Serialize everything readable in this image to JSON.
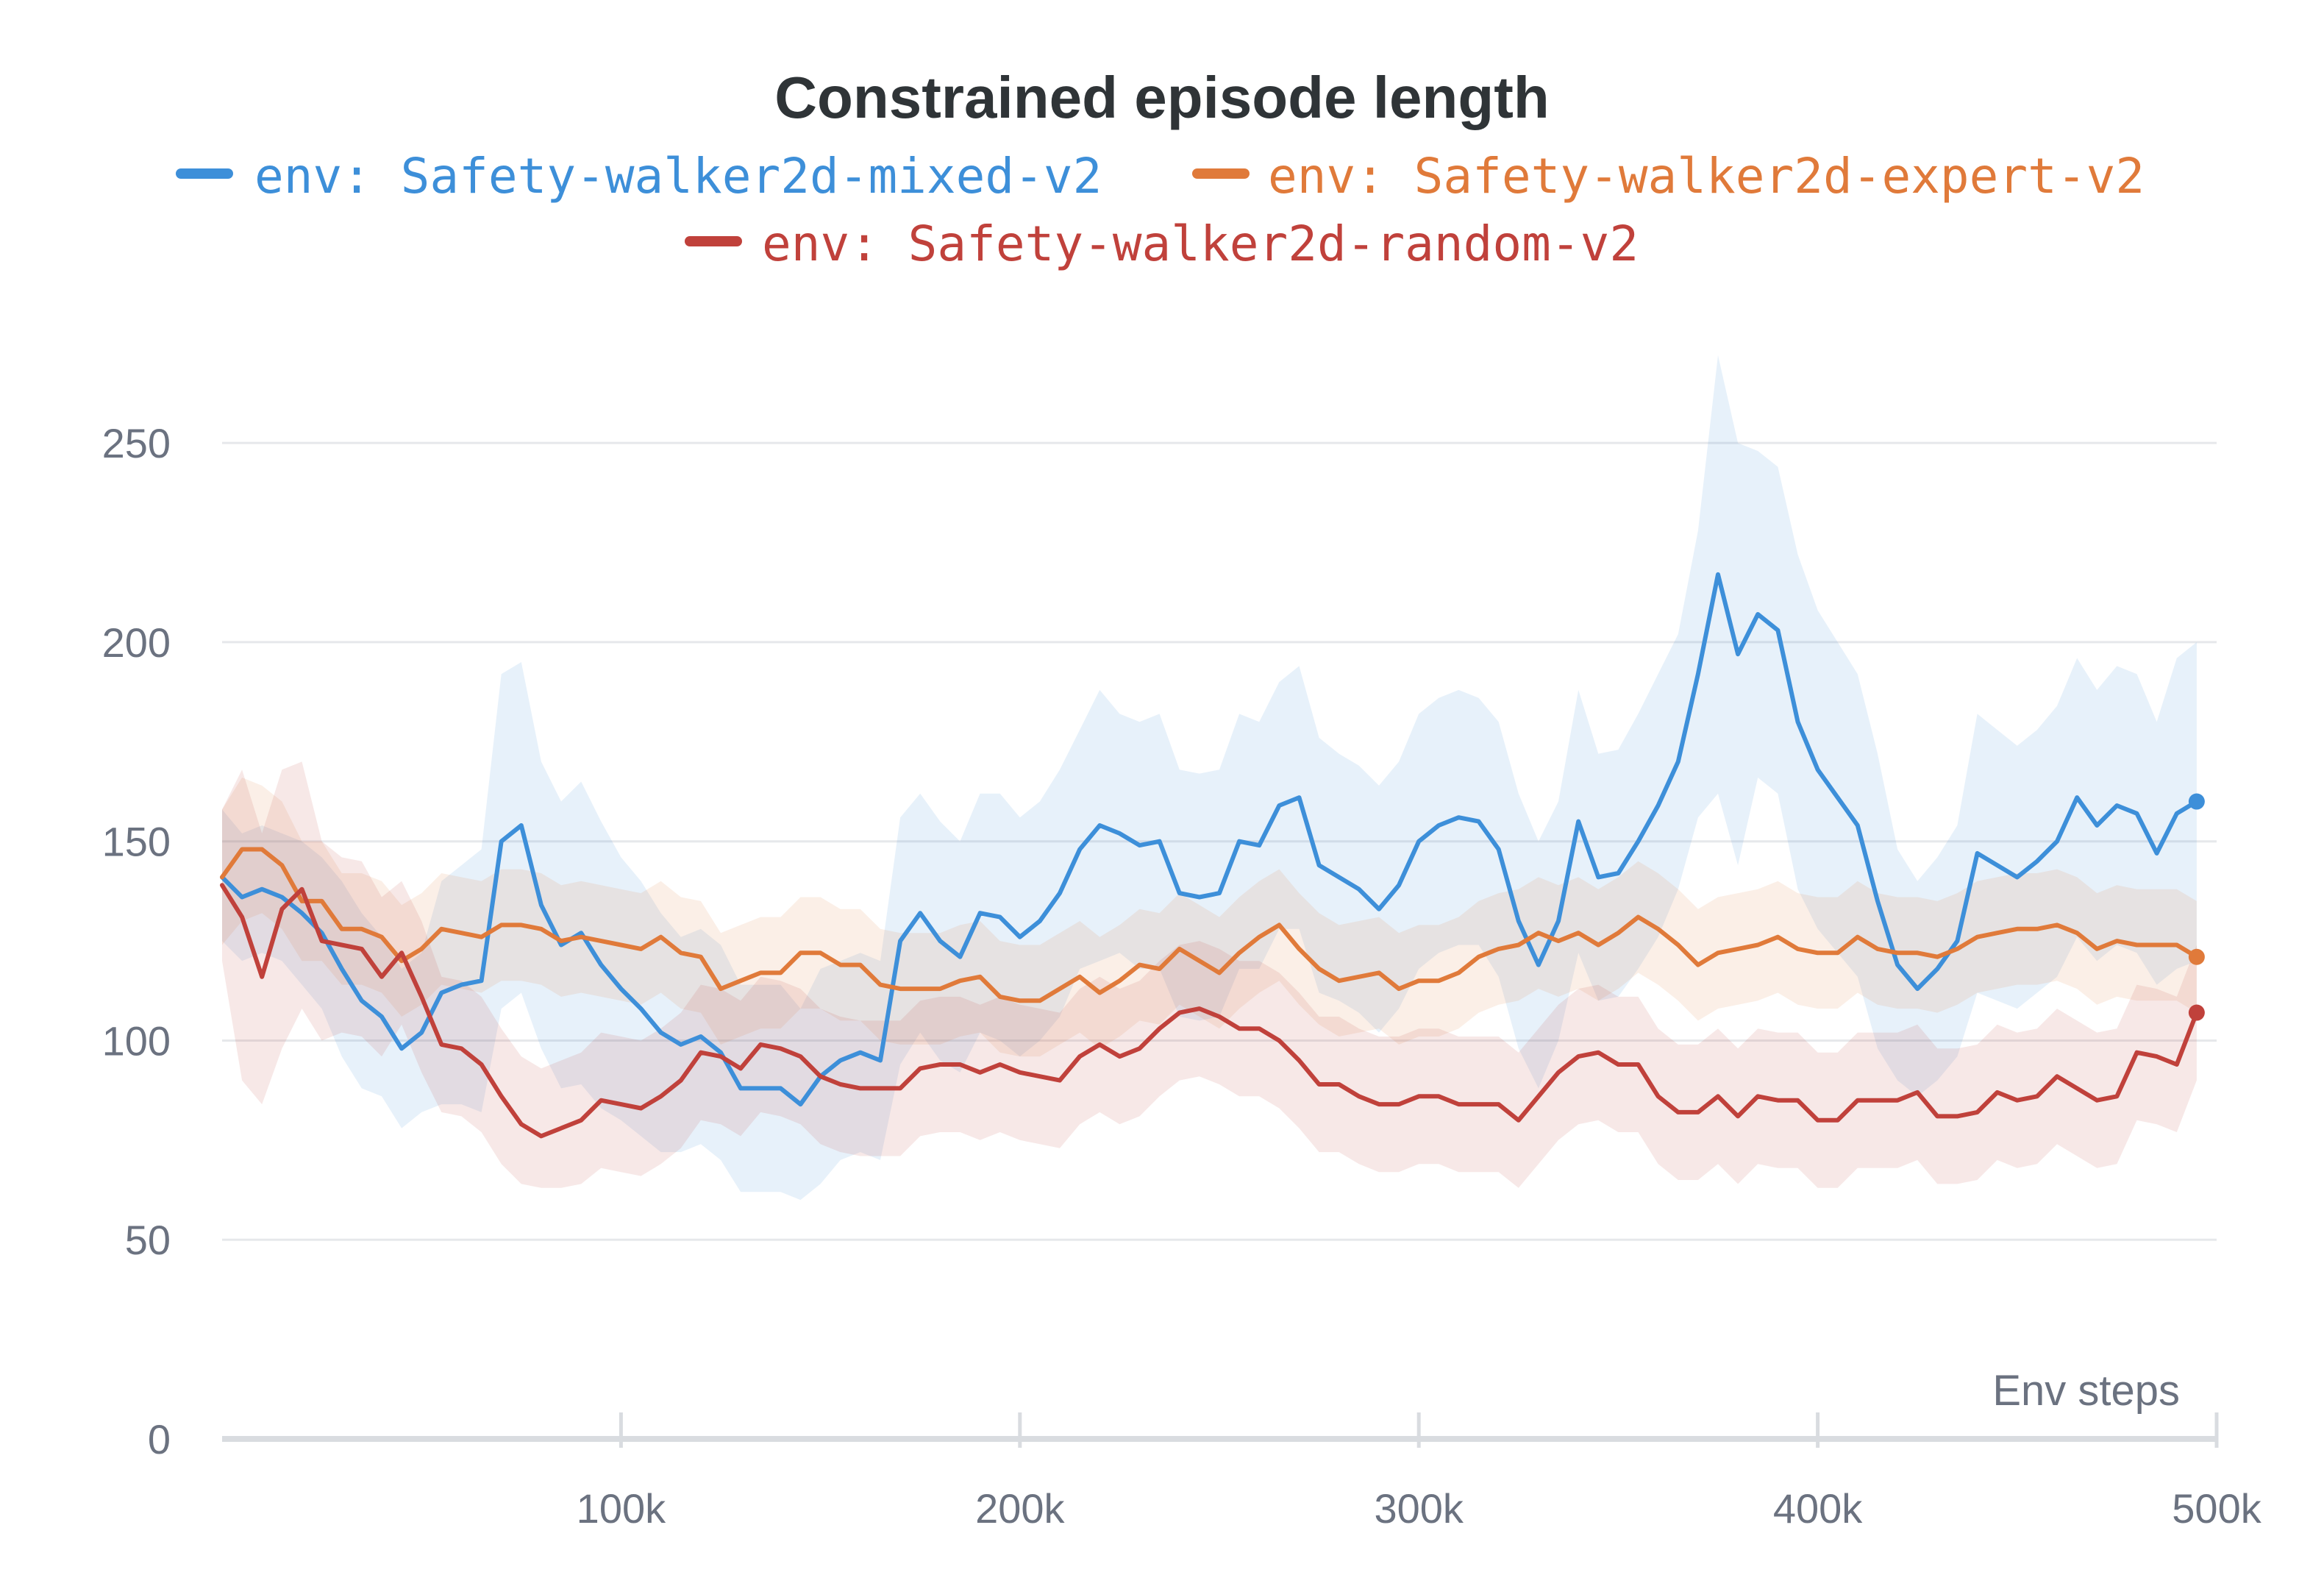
{
  "chart_data": {
    "type": "line",
    "title": "Constrained episode length",
    "xlabel": "Env steps",
    "ylabel": "",
    "xlim": [
      0,
      500000
    ],
    "ylim": [
      0,
      260
    ],
    "grid": true,
    "legend_position": "top",
    "x_ticks": [
      100000,
      200000,
      300000,
      400000,
      500000
    ],
    "x_tick_labels": [
      "100k",
      "200k",
      "300k",
      "400k",
      "500k"
    ],
    "y_ticks": [
      0,
      50,
      100,
      150,
      200,
      250
    ],
    "y_tick_labels": [
      "0",
      "50",
      "100",
      "150",
      "200",
      "250"
    ],
    "x_start": 0,
    "x_step": 5000,
    "series": [
      {
        "name": "env: Safety-walker2d-mixed-v2",
        "color": "#3d8fd9",
        "values": [
          141,
          136,
          138,
          136,
          132,
          127,
          118,
          110,
          106,
          98,
          102,
          112,
          114,
          115,
          150,
          154,
          134,
          124,
          127,
          119,
          113,
          108,
          102,
          99,
          101,
          97,
          88,
          88,
          88,
          84,
          91,
          95,
          97,
          95,
          125,
          132,
          125,
          121,
          132,
          131,
          126,
          130,
          137,
          148,
          154,
          152,
          149,
          150,
          137,
          136,
          137,
          150,
          149,
          159,
          161,
          144,
          141,
          138,
          133,
          139,
          150,
          154,
          156,
          155,
          148,
          130,
          119,
          130,
          155,
          141,
          142,
          150,
          159,
          170,
          192,
          217,
          197,
          207,
          203,
          180,
          168,
          161,
          154,
          135,
          119,
          113,
          118,
          125,
          147,
          144,
          141,
          145,
          150,
          161,
          154,
          159,
          157,
          147,
          157,
          160
        ],
        "band_upper": [
          158,
          152,
          154,
          152,
          150,
          146,
          140,
          132,
          126,
          118,
          122,
          140,
          144,
          148,
          192,
          195,
          170,
          160,
          165,
          155,
          146,
          140,
          132,
          126,
          128,
          124,
          114,
          114,
          114,
          108,
          118,
          120,
          122,
          120,
          156,
          162,
          155,
          150,
          162,
          162,
          156,
          160,
          168,
          178,
          188,
          182,
          180,
          182,
          168,
          167,
          168,
          182,
          180,
          190,
          194,
          176,
          172,
          169,
          164,
          170,
          182,
          186,
          188,
          186,
          180,
          162,
          150,
          160,
          188,
          172,
          173,
          182,
          192,
          202,
          228,
          272,
          250,
          248,
          244,
          222,
          208,
          200,
          192,
          172,
          148,
          140,
          146,
          154,
          182,
          178,
          174,
          178,
          184,
          196,
          188,
          194,
          192,
          180,
          196,
          200
        ],
        "band_lower": [
          125,
          120,
          122,
          120,
          114,
          108,
          96,
          88,
          86,
          78,
          82,
          84,
          84,
          82,
          108,
          112,
          98,
          88,
          89,
          83,
          80,
          76,
          72,
          72,
          74,
          70,
          62,
          62,
          62,
          60,
          64,
          70,
          72,
          70,
          94,
          102,
          95,
          92,
          102,
          100,
          96,
          100,
          106,
          118,
          120,
          122,
          118,
          118,
          106,
          105,
          106,
          118,
          118,
          128,
          128,
          112,
          110,
          107,
          102,
          108,
          118,
          122,
          124,
          124,
          116,
          98,
          88,
          100,
          122,
          110,
          111,
          118,
          126,
          138,
          156,
          162,
          144,
          166,
          162,
          138,
          128,
          122,
          116,
          98,
          90,
          86,
          90,
          96,
          112,
          110,
          108,
          112,
          116,
          126,
          120,
          124,
          122,
          114,
          118,
          120
        ]
      },
      {
        "name": "env: Safety-walker2d-expert-v2",
        "color": "#e07a3a",
        "values": [
          141,
          148,
          148,
          144,
          135,
          135,
          128,
          128,
          126,
          120,
          123,
          128,
          127,
          126,
          129,
          129,
          128,
          125,
          126,
          125,
          124,
          123,
          126,
          122,
          121,
          113,
          115,
          117,
          117,
          122,
          122,
          119,
          119,
          114,
          113,
          113,
          113,
          115,
          116,
          111,
          110,
          110,
          113,
          116,
          112,
          115,
          119,
          118,
          123,
          120,
          117,
          122,
          126,
          129,
          123,
          118,
          115,
          116,
          117,
          113,
          115,
          115,
          117,
          121,
          123,
          124,
          127,
          125,
          127,
          124,
          127,
          131,
          128,
          124,
          119,
          122,
          123,
          124,
          126,
          123,
          122,
          122,
          126,
          123,
          122,
          122,
          121,
          123,
          126,
          127,
          128,
          128,
          129,
          127,
          123,
          125,
          124,
          124,
          124,
          121
        ],
        "band_upper": [
          158,
          166,
          164,
          160,
          150,
          150,
          142,
          142,
          140,
          134,
          137,
          142,
          141,
          140,
          143,
          143,
          142,
          139,
          140,
          139,
          138,
          137,
          140,
          136,
          135,
          127,
          129,
          131,
          131,
          136,
          136,
          133,
          133,
          128,
          127,
          127,
          127,
          129,
          130,
          125,
          124,
          124,
          127,
          130,
          126,
          129,
          133,
          132,
          137,
          134,
          131,
          136,
          140,
          143,
          137,
          132,
          129,
          130,
          131,
          127,
          129,
          129,
          131,
          135,
          137,
          138,
          141,
          139,
          141,
          138,
          141,
          145,
          142,
          138,
          133,
          136,
          137,
          138,
          140,
          137,
          136,
          136,
          140,
          137,
          136,
          136,
          135,
          137,
          140,
          141,
          142,
          142,
          143,
          141,
          137,
          139,
          138,
          138,
          138,
          135
        ],
        "band_lower": [
          124,
          130,
          132,
          128,
          120,
          120,
          114,
          114,
          112,
          106,
          109,
          114,
          113,
          112,
          115,
          115,
          114,
          111,
          112,
          111,
          110,
          109,
          112,
          108,
          107,
          99,
          101,
          103,
          103,
          108,
          108,
          105,
          105,
          100,
          99,
          99,
          99,
          101,
          102,
          97,
          96,
          96,
          99,
          102,
          98,
          101,
          105,
          104,
          109,
          106,
          103,
          108,
          112,
          115,
          109,
          104,
          101,
          102,
          103,
          99,
          101,
          101,
          103,
          107,
          109,
          110,
          113,
          111,
          113,
          110,
          113,
          117,
          114,
          110,
          105,
          108,
          109,
          110,
          112,
          109,
          108,
          108,
          112,
          109,
          108,
          108,
          107,
          109,
          112,
          113,
          114,
          114,
          115,
          113,
          109,
          111,
          110,
          110,
          110,
          107
        ]
      },
      {
        "name": "env: Safety-walker2d-random-v2",
        "color": "#c0413b",
        "values": [
          139,
          131,
          116,
          133,
          138,
          125,
          124,
          123,
          116,
          122,
          111,
          99,
          98,
          94,
          86,
          79,
          76,
          78,
          80,
          85,
          84,
          83,
          86,
          90,
          97,
          96,
          93,
          99,
          98,
          96,
          91,
          89,
          88,
          88,
          88,
          93,
          94,
          94,
          92,
          94,
          92,
          91,
          90,
          96,
          99,
          96,
          98,
          103,
          107,
          108,
          106,
          103,
          103,
          100,
          95,
          89,
          89,
          86,
          84,
          84,
          86,
          86,
          84,
          84,
          84,
          80,
          86,
          92,
          96,
          97,
          94,
          94,
          86,
          82,
          82,
          86,
          81,
          86,
          85,
          85,
          80,
          80,
          85,
          85,
          85,
          87,
          81,
          81,
          82,
          87,
          85,
          86,
          91,
          88,
          85,
          86,
          97,
          96,
          94,
          107
        ],
        "band_upper": [
          158,
          168,
          152,
          168,
          170,
          150,
          146,
          145,
          136,
          140,
          130,
          116,
          115,
          111,
          103,
          96,
          93,
          95,
          97,
          102,
          101,
          100,
          103,
          107,
          114,
          113,
          110,
          116,
          115,
          113,
          108,
          106,
          105,
          105,
          105,
          110,
          111,
          111,
          109,
          111,
          109,
          108,
          107,
          113,
          116,
          113,
          115,
          120,
          124,
          125,
          123,
          120,
          120,
          117,
          112,
          106,
          106,
          103,
          101,
          101,
          103,
          103,
          101,
          101,
          101,
          97,
          103,
          109,
          113,
          114,
          111,
          111,
          103,
          99,
          99,
          103,
          98,
          103,
          102,
          102,
          97,
          97,
          102,
          102,
          102,
          104,
          98,
          98,
          99,
          104,
          102,
          103,
          108,
          105,
          102,
          103,
          114,
          113,
          111,
          124
        ],
        "band_lower": [
          120,
          90,
          84,
          98,
          108,
          100,
          102,
          101,
          96,
          104,
          92,
          82,
          81,
          77,
          69,
          64,
          63,
          63,
          64,
          68,
          67,
          66,
          69,
          73,
          80,
          79,
          76,
          82,
          81,
          79,
          74,
          72,
          71,
          71,
          71,
          76,
          77,
          77,
          75,
          77,
          75,
          74,
          73,
          79,
          82,
          79,
          81,
          86,
          90,
          91,
          89,
          86,
          86,
          83,
          78,
          72,
          72,
          69,
          67,
          67,
          69,
          69,
          67,
          67,
          67,
          63,
          69,
          75,
          79,
          80,
          77,
          77,
          69,
          65,
          65,
          69,
          64,
          69,
          68,
          68,
          63,
          63,
          68,
          68,
          68,
          70,
          64,
          64,
          65,
          70,
          68,
          69,
          74,
          71,
          68,
          69,
          80,
          79,
          77,
          90
        ]
      }
    ]
  }
}
